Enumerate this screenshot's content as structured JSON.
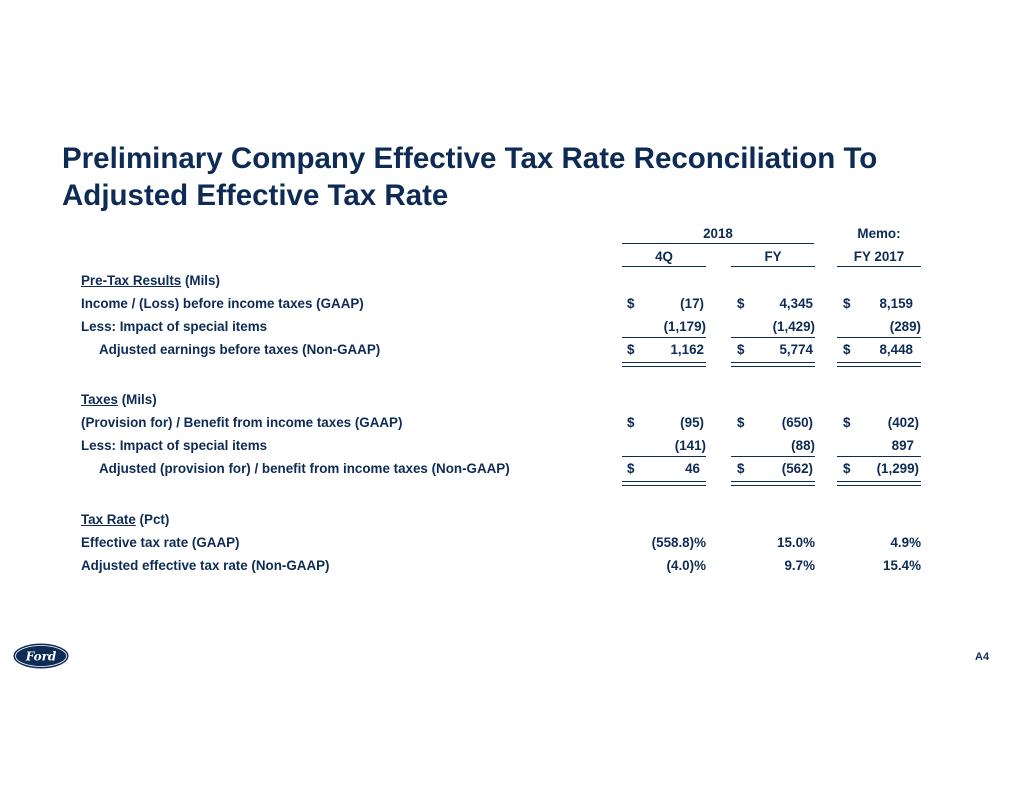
{
  "title": {
    "line1": "Preliminary Company Effective Tax Rate Reconciliation To",
    "line2": "Adjusted Effective Tax Rate"
  },
  "headers": {
    "group_2018": "2018",
    "memo": "Memo:",
    "col_4q": "4Q",
    "col_fy": "FY",
    "col_fy2017": "FY 2017"
  },
  "sections": {
    "pretax": {
      "heading_u": "Pre-Tax Results",
      "heading_rest": " (Mils)"
    },
    "taxes": {
      "heading_u": "Taxes",
      "heading_rest": " (Mils)"
    },
    "rate": {
      "heading_u": "Tax Rate",
      "heading_rest": " (Pct)"
    }
  },
  "rows": {
    "income": {
      "label": "Income / (Loss) before income taxes (GAAP)",
      "cur_4q": "$",
      "v_4q": "(17)",
      "cur_fy": "$",
      "v_fy": "4,345",
      "cur_17": "$",
      "v_17": "8,159"
    },
    "less_pretax": {
      "label": "Less:  Impact of special items",
      "v_4q": "(1,179)",
      "v_fy": "(1,429)",
      "v_17": "(289)"
    },
    "adj_ebt": {
      "label": "Adjusted earnings before taxes (Non-GAAP)",
      "cur_4q": "$",
      "v_4q": "1,162",
      "cur_fy": "$",
      "v_fy": "5,774",
      "cur_17": "$",
      "v_17": "8,448"
    },
    "provision": {
      "label": "(Provision for) / Benefit from income taxes (GAAP)",
      "cur_4q": "$",
      "v_4q": "(95)",
      "cur_fy": "$",
      "v_fy": "(650)",
      "cur_17": "$",
      "v_17": "(402)"
    },
    "less_tax": {
      "label": "Less:  Impact of special items",
      "v_4q": "(141)",
      "v_fy": "(88)",
      "v_17": "897"
    },
    "adj_provision": {
      "label": "Adjusted (provision for) / benefit from income taxes (Non-GAAP)",
      "cur_4q": "$",
      "v_4q": "46",
      "cur_fy": "$",
      "v_fy": "(562)",
      "cur_17": "$",
      "v_17": "(1,299)"
    },
    "eff_rate": {
      "label": "Effective tax rate (GAAP)",
      "v_4q": "(558.8)%",
      "v_fy": "15.0%",
      "v_17": "4.9%"
    },
    "adj_rate": {
      "label": "Adjusted effective tax rate (Non-GAAP)",
      "v_4q": "(4.0)%",
      "v_fy": "9.7%",
      "v_17": "15.4%"
    }
  },
  "logo": {
    "text": "Ford",
    "icon": "ford-oval-logo",
    "color": "#0d2b55"
  },
  "page_number": "A4"
}
